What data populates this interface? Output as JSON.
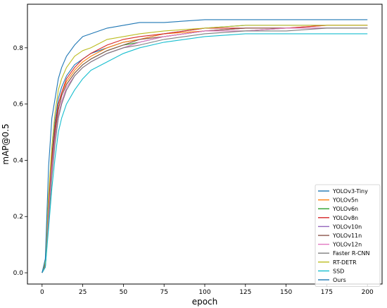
{
  "chart_data": {
    "type": "line",
    "xlabel": "epoch",
    "ylabel": "mAP@0.5",
    "xlim": [
      -9,
      209
    ],
    "ylim": [
      -0.04,
      0.955
    ],
    "xticks": [
      0,
      25,
      50,
      75,
      100,
      125,
      150,
      175,
      200
    ],
    "xtick_labels": [
      "0",
      "25",
      "50",
      "75",
      "100",
      "125",
      "150",
      "175",
      "200"
    ],
    "yticks": [
      0.0,
      0.2,
      0.4,
      0.6,
      0.8
    ],
    "ytick_labels": [
      "0.0",
      "0.2",
      "0.4",
      "0.6",
      "0.8"
    ],
    "grid": false,
    "legend_position": "lower-right",
    "x": [
      0,
      2,
      4,
      6,
      8,
      10,
      12,
      15,
      20,
      25,
      30,
      40,
      50,
      60,
      75,
      100,
      125,
      150,
      175,
      200
    ],
    "series": [
      {
        "name": "YOLOv3-Tiny",
        "color": "#1f77b4",
        "values": [
          0.0,
          0.04,
          0.26,
          0.42,
          0.54,
          0.62,
          0.66,
          0.7,
          0.74,
          0.76,
          0.78,
          0.8,
          0.82,
          0.83,
          0.85,
          0.87,
          0.88,
          0.88,
          0.88,
          0.88
        ]
      },
      {
        "name": "YOLOv5n",
        "color": "#ff7f0e",
        "values": [
          0.0,
          0.03,
          0.24,
          0.4,
          0.52,
          0.6,
          0.64,
          0.68,
          0.72,
          0.75,
          0.77,
          0.8,
          0.82,
          0.83,
          0.85,
          0.86,
          0.87,
          0.87,
          0.88,
          0.88
        ]
      },
      {
        "name": "YOLOv6n",
        "color": "#2ca02c",
        "values": [
          0.0,
          0.03,
          0.22,
          0.38,
          0.5,
          0.58,
          0.63,
          0.67,
          0.71,
          0.74,
          0.76,
          0.79,
          0.81,
          0.82,
          0.84,
          0.86,
          0.86,
          0.87,
          0.87,
          0.87
        ]
      },
      {
        "name": "YOLOv8n",
        "color": "#d62728",
        "values": [
          0.0,
          0.03,
          0.25,
          0.41,
          0.52,
          0.6,
          0.64,
          0.69,
          0.73,
          0.76,
          0.78,
          0.81,
          0.83,
          0.84,
          0.85,
          0.87,
          0.87,
          0.87,
          0.88,
          0.88
        ]
      },
      {
        "name": "YOLOv10n",
        "color": "#9467bd",
        "values": [
          0.0,
          0.02,
          0.2,
          0.36,
          0.47,
          0.55,
          0.6,
          0.65,
          0.7,
          0.73,
          0.75,
          0.78,
          0.8,
          0.82,
          0.84,
          0.86,
          0.87,
          0.87,
          0.87,
          0.87
        ]
      },
      {
        "name": "YOLOv11n",
        "color": "#8c564b",
        "values": [
          0.0,
          0.03,
          0.23,
          0.39,
          0.5,
          0.58,
          0.63,
          0.67,
          0.71,
          0.74,
          0.76,
          0.79,
          0.81,
          0.83,
          0.84,
          0.86,
          0.87,
          0.87,
          0.87,
          0.87
        ]
      },
      {
        "name": "YOLOv12n",
        "color": "#e377c2",
        "values": [
          0.0,
          0.02,
          0.21,
          0.37,
          0.48,
          0.56,
          0.61,
          0.66,
          0.7,
          0.73,
          0.75,
          0.78,
          0.8,
          0.82,
          0.84,
          0.86,
          0.86,
          0.87,
          0.87,
          0.87
        ]
      },
      {
        "name": "Faster R-CNN",
        "color": "#7f7f7f",
        "values": [
          0.0,
          0.02,
          0.18,
          0.34,
          0.46,
          0.55,
          0.6,
          0.65,
          0.7,
          0.73,
          0.75,
          0.78,
          0.8,
          0.81,
          0.83,
          0.85,
          0.86,
          0.86,
          0.87,
          0.87
        ]
      },
      {
        "name": "RT-DETR",
        "color": "#bcbd22",
        "values": [
          0.0,
          0.04,
          0.28,
          0.45,
          0.57,
          0.65,
          0.69,
          0.73,
          0.77,
          0.79,
          0.8,
          0.83,
          0.84,
          0.85,
          0.86,
          0.87,
          0.88,
          0.88,
          0.88,
          0.88
        ]
      },
      {
        "name": "SSD",
        "color": "#17becf",
        "values": [
          0.0,
          0.02,
          0.16,
          0.3,
          0.41,
          0.5,
          0.55,
          0.6,
          0.65,
          0.69,
          0.72,
          0.75,
          0.78,
          0.8,
          0.82,
          0.84,
          0.85,
          0.85,
          0.85,
          0.85
        ]
      },
      {
        "name": "Ours",
        "color": "#1f77b4",
        "values": [
          0.0,
          0.05,
          0.38,
          0.55,
          0.62,
          0.69,
          0.73,
          0.77,
          0.81,
          0.84,
          0.85,
          0.87,
          0.88,
          0.89,
          0.89,
          0.9,
          0.9,
          0.9,
          0.9,
          0.9
        ]
      }
    ]
  }
}
